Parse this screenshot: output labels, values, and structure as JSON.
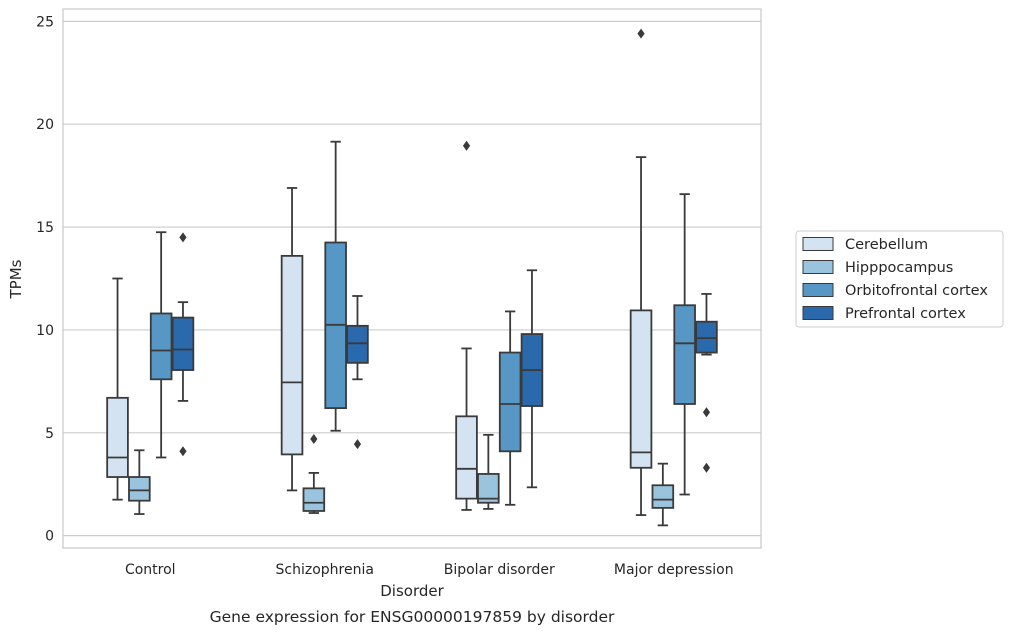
{
  "caption": "Gene expression for ENSG00000197859 by disorder",
  "chart_data": {
    "type": "box",
    "title": "",
    "xlabel": "Disorder",
    "ylabel": "TPMs",
    "ylim": [
      -0.6,
      25.6
    ],
    "yticks": [
      0,
      5,
      10,
      15,
      20,
      25
    ],
    "grid": "horizontal",
    "legend_position": "right, outside plot",
    "categories": [
      "Control",
      "Schizophrenia",
      "Bipolar disorder",
      "Major depression"
    ],
    "series": [
      {
        "name": "Cerebellum",
        "color": "#d4e3f2",
        "boxes": [
          {
            "whislo": 1.75,
            "q1": 2.85,
            "med": 3.8,
            "q3": 6.7,
            "whishi": 12.5,
            "fliers": []
          },
          {
            "whislo": 2.2,
            "q1": 3.95,
            "med": 7.45,
            "q3": 13.6,
            "whishi": 16.9,
            "fliers": []
          },
          {
            "whislo": 1.25,
            "q1": 1.8,
            "med": 3.25,
            "q3": 5.8,
            "whishi": 9.1,
            "fliers": [
              18.95
            ]
          },
          {
            "whislo": 1.0,
            "q1": 3.3,
            "med": 4.05,
            "q3": 10.95,
            "whishi": 18.4,
            "fliers": [
              24.4
            ]
          }
        ]
      },
      {
        "name": "Hipppocampus",
        "color": "#9ac4de",
        "boxes": [
          {
            "whislo": 1.05,
            "q1": 1.7,
            "med": 2.2,
            "q3": 2.85,
            "whishi": 4.15,
            "fliers": []
          },
          {
            "whislo": 1.1,
            "q1": 1.2,
            "med": 1.6,
            "q3": 2.3,
            "whishi": 3.05,
            "fliers": [
              4.7
            ]
          },
          {
            "whislo": 1.3,
            "q1": 1.6,
            "med": 1.8,
            "q3": 3.0,
            "whishi": 4.9,
            "fliers": []
          },
          {
            "whislo": 0.5,
            "q1": 1.35,
            "med": 1.75,
            "q3": 2.45,
            "whishi": 3.5,
            "fliers": []
          }
        ]
      },
      {
        "name": "Orbitofrontal cortex",
        "color": "#5697c5",
        "boxes": [
          {
            "whislo": 3.8,
            "q1": 7.6,
            "med": 9.0,
            "q3": 10.8,
            "whishi": 14.75,
            "fliers": []
          },
          {
            "whislo": 5.1,
            "q1": 6.2,
            "med": 10.25,
            "q3": 14.25,
            "whishi": 19.15,
            "fliers": []
          },
          {
            "whislo": 1.5,
            "q1": 4.1,
            "med": 6.4,
            "q3": 8.9,
            "whishi": 10.9,
            "fliers": []
          },
          {
            "whislo": 2.0,
            "q1": 6.4,
            "med": 9.35,
            "q3": 11.2,
            "whishi": 16.6,
            "fliers": []
          }
        ]
      },
      {
        "name": "Prefrontal cortex",
        "color": "#2a69ab",
        "boxes": [
          {
            "whislo": 6.55,
            "q1": 8.05,
            "med": 9.05,
            "q3": 10.6,
            "whishi": 11.35,
            "fliers": [
              14.5,
              4.1
            ]
          },
          {
            "whislo": 7.6,
            "q1": 8.4,
            "med": 9.35,
            "q3": 10.2,
            "whishi": 11.65,
            "fliers": [
              4.45
            ]
          },
          {
            "whislo": 2.35,
            "q1": 6.3,
            "med": 8.05,
            "q3": 9.8,
            "whishi": 12.9,
            "fliers": []
          },
          {
            "whislo": 8.8,
            "q1": 8.9,
            "med": 9.6,
            "q3": 10.4,
            "whishi": 11.75,
            "fliers": [
              6.0,
              3.3
            ]
          }
        ]
      }
    ]
  }
}
